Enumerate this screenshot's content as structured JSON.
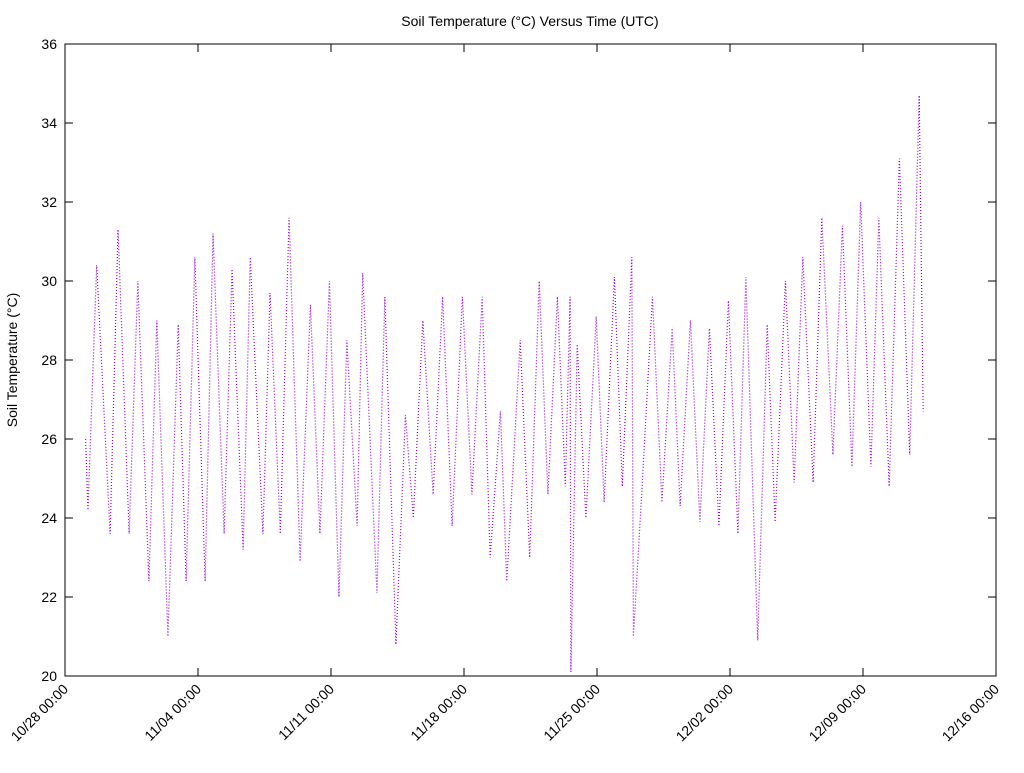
{
  "chart_data": {
    "type": "line",
    "title": "Soil Temperature (°C) Versus Time (UTC)",
    "y_label": "Soil Temperature (°C)",
    "xlim": [
      "10/28 00:00",
      "12/16 00:00"
    ],
    "xticks": [
      "10/28 00:00",
      "11/04 00:00",
      "11/11 00:00",
      "11/18 00:00",
      "11/25 00:00",
      "12/02 00:00",
      "12/09 00:00",
      "12/16 00:00"
    ],
    "ylim": [
      20,
      36
    ],
    "yticks": [
      20,
      22,
      24,
      26,
      28,
      30,
      32,
      34,
      36
    ],
    "series": [
      {
        "color": "#9400d3",
        "x": [
          "10/29 02:00",
          "10/29 05:00",
          "10/29 16:00",
          "10/30 09:00",
          "10/30 19:00",
          "10/31 09:00",
          "10/31 20:00",
          "11/01 10:00",
          "11/01 20:00",
          "11/02 10:00",
          "11/02 23:00",
          "11/03 09:00",
          "11/03 20:00",
          "11/04 09:00",
          "11/04 19:00",
          "11/05 09:00",
          "11/05 19:00",
          "11/06 09:00",
          "11/06 18:00",
          "11/07 10:00",
          "11/07 19:00",
          "11/08 08:00",
          "11/08 19:00",
          "11/09 09:00",
          "11/09 22:00",
          "11/10 10:00",
          "11/10 22:00",
          "11/11 10:00",
          "11/11 20:00",
          "11/12 09:00",
          "11/12 16:00",
          "11/13 10:00",
          "11/13 20:00",
          "11/14 10:00",
          "11/14 22:00",
          "11/15 08:00",
          "11/15 20:00",
          "11/16 09:00",
          "11/16 21:00",
          "11/17 09:00",
          "11/17 22:00",
          "11/18 10:00",
          "11/18 23:00",
          "11/19 09:00",
          "11/19 22:00",
          "11/20 06:00",
          "11/20 23:00",
          "11/21 11:00",
          "11/21 23:00",
          "11/22 10:00",
          "11/22 22:00",
          "11/23 08:00",
          "11/23 14:00",
          "11/23 15:00",
          "11/23 23:00",
          "11/24 10:00",
          "11/24 23:00",
          "11/25 09:00",
          "11/25 22:00",
          "11/26 08:00",
          "11/26 20:00",
          "11/26 22:00",
          "11/27 09:00",
          "11/27 22:00",
          "11/28 10:00",
          "11/28 23:00",
          "11/29 09:00",
          "11/29 22:00",
          "11/30 10:00",
          "11/30 22:00",
          "12/01 10:00",
          "12/01 22:00",
          "12/02 10:00",
          "12/02 20:00",
          "12/03 11:00",
          "12/03 23:00",
          "12/04 09:00",
          "12/04 22:00",
          "12/05 09:00",
          "12/05 20:00",
          "12/06 09:00",
          "12/06 20:00",
          "12/07 10:00",
          "12/07 22:00",
          "12/08 10:00",
          "12/08 21:00",
          "12/09 10:00",
          "12/09 20:00",
          "12/10 09:00",
          "12/10 22:00",
          "12/11 11:00",
          "12/11 23:00",
          "12/12 04:00"
        ],
        "values": [
          26.0,
          24.2,
          30.4,
          23.6,
          31.3,
          23.6,
          30.0,
          22.4,
          29.0,
          21.0,
          28.9,
          22.4,
          30.6,
          22.4,
          31.2,
          23.6,
          30.3,
          23.2,
          30.6,
          23.6,
          29.7,
          23.6,
          31.6,
          22.9,
          29.4,
          23.6,
          30.0,
          22.0,
          28.5,
          23.8,
          30.2,
          22.1,
          29.6,
          20.8,
          26.6,
          24.0,
          29.0,
          24.6,
          29.6,
          23.8,
          29.6,
          24.6,
          29.6,
          23.0,
          26.7,
          22.4,
          28.5,
          23.0,
          30.0,
          24.6,
          29.6,
          24.8,
          29.6,
          20.1,
          28.4,
          24.0,
          29.1,
          24.4,
          30.1,
          24.8,
          30.6,
          21.0,
          24.8,
          29.6,
          24.4,
          28.8,
          24.3,
          29.0,
          23.9,
          28.8,
          23.8,
          29.5,
          23.6,
          30.1,
          20.9,
          28.9,
          23.9,
          30.0,
          24.9,
          30.6,
          24.9,
          31.6,
          25.6,
          31.4,
          25.3,
          32.0,
          25.3,
          31.6,
          24.8,
          33.1,
          25.6,
          34.7,
          26.7
        ]
      }
    ]
  }
}
